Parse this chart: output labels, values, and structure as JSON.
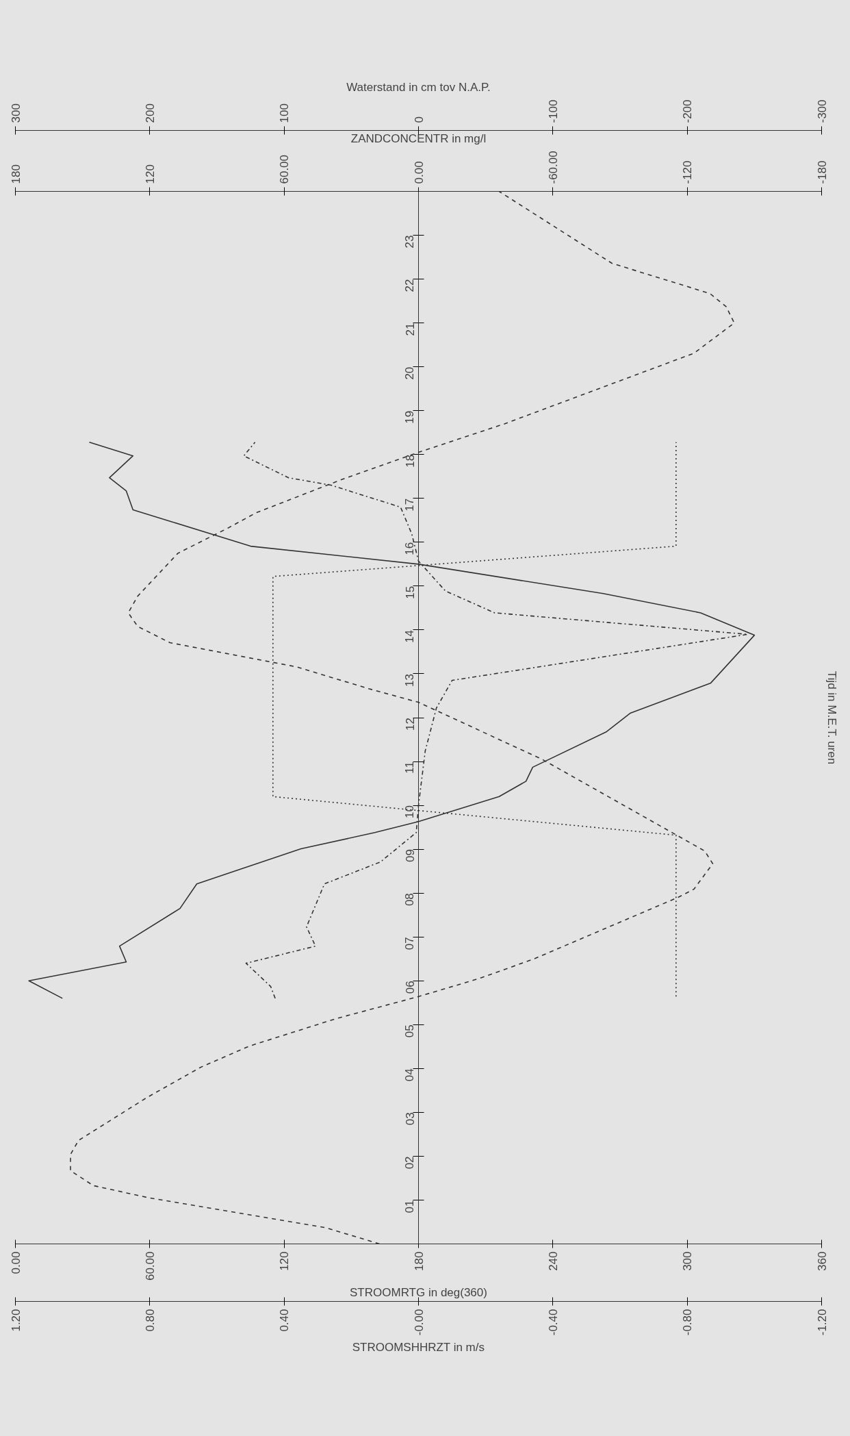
{
  "chart_data": [
    {
      "type": "line",
      "orientation": "horizontal",
      "xlabel": "STROOMSHHRZT in m/s",
      "x2label": "STROOMRTG in deg(360)",
      "ylabel": "Tijd in M.E.T. uren",
      "xlim": [
        1.2,
        -1.2
      ],
      "xticks": [
        {
          "value": 1.2,
          "label": "1.20"
        },
        {
          "value": 0.8,
          "label": "0.80"
        },
        {
          "value": 0.4,
          "label": "0.40"
        },
        {
          "value": 0,
          "label": "-0.00"
        },
        {
          "value": -0.4,
          "label": "-0.40"
        },
        {
          "value": -0.8,
          "label": "-0.80"
        },
        {
          "value": -1.2,
          "label": "-1.20"
        }
      ],
      "x2lim": [
        0,
        360
      ],
      "x2ticks": [
        {
          "value": 0,
          "label": "0.00"
        },
        {
          "value": 60,
          "label": "60.00"
        },
        120,
        180,
        240,
        300,
        360
      ],
      "ylim": [
        0,
        24
      ],
      "yticks": [
        {
          "value": 1,
          "label": "01"
        },
        {
          "value": 2,
          "label": "02"
        },
        {
          "value": 3,
          "label": "03"
        },
        {
          "value": 4,
          "label": "04"
        },
        {
          "value": 5,
          "label": "05"
        },
        {
          "value": 6,
          "label": "06"
        },
        {
          "value": 7,
          "label": "07"
        },
        {
          "value": 8,
          "label": "08"
        },
        {
          "value": 9,
          "label": "09"
        },
        {
          "value": 10,
          "label": "10"
        },
        {
          "value": 11,
          "label": "11"
        },
        {
          "value": 12,
          "label": "12"
        },
        {
          "value": 13,
          "label": "13"
        },
        {
          "value": 14,
          "label": "14"
        },
        {
          "value": 15,
          "label": "15"
        },
        {
          "value": 16,
          "label": "16"
        },
        {
          "value": 17,
          "label": "17"
        },
        {
          "value": 18,
          "label": "18"
        },
        {
          "value": 19,
          "label": "19"
        },
        {
          "value": 20,
          "label": "20"
        },
        {
          "value": 21,
          "label": "21"
        },
        {
          "value": 22,
          "label": "22"
        },
        {
          "value": 23,
          "label": "23"
        }
      ],
      "series": [
        {
          "line_style": "solid",
          "color": "#333333",
          "x": [
            5.6,
            6.0,
            6.43,
            6.79,
            7.65,
            8.21,
            9.01,
            9.38,
            9.63,
            10.2,
            10.55,
            10.87,
            11.68,
            12.1,
            12.79,
            13.88,
            14.39,
            14.83,
            15.5,
            15.91,
            16.74,
            17.17,
            17.47,
            17.97,
            18.28
          ],
          "values": [
            1.06,
            1.16,
            0.87,
            0.89,
            0.71,
            0.66,
            0.35,
            0.13,
            0.0,
            -0.24,
            -0.32,
            -0.34,
            -0.56,
            -0.63,
            -0.87,
            -1.0,
            -0.84,
            -0.55,
            0.0,
            0.5,
            0.85,
            0.87,
            0.92,
            0.85,
            0.98
          ]
        },
        {
          "axis": "x2",
          "line_style": "dotted",
          "color": "#333333",
          "x": [
            5.64,
            9.32,
            10.2,
            15.22,
            15.91,
            18.28
          ],
          "values": [
            295,
            295,
            115,
            115,
            295,
            295
          ]
        }
      ]
    },
    {
      "type": "line",
      "orientation": "horizontal",
      "tick_labels": "x",
      "xlabel": "Waterstand in cm tov N.A.P.",
      "x2label": "ZANDCONCENTR in mg/l",
      "xlim": [
        300,
        -300
      ],
      "xticks": [
        300,
        200,
        100,
        0,
        -100,
        -200,
        -300
      ],
      "x2lim": [
        180,
        -180
      ],
      "x2ticks": [
        180,
        120,
        {
          "value": 60,
          "label": "60.00"
        },
        {
          "value": 0,
          "label": "0.00"
        },
        {
          "value": -60,
          "label": "-60.00"
        },
        -120,
        -180
      ],
      "ylim": [
        0,
        24
      ],
      "series": [
        {
          "line_style": "dashed",
          "color": "#333333",
          "x": [
            0,
            0.37,
            1.06,
            1.33,
            1.67,
            2.04,
            2.36,
            3.34,
            4.03,
            4.51,
            5.14,
            5.64,
            6.06,
            6.5,
            7.9,
            8.09,
            8.67,
            8.96,
            11.05,
            12.35,
            12.66,
            13.16,
            13.71,
            14.08,
            14.39,
            14.77,
            15.75,
            16.32,
            16.67,
            17.42,
            18.05,
            18.7,
            20.31,
            21.0,
            21.37,
            21.67,
            22.36,
            24
          ],
          "values": [
            29,
            69,
            202,
            242,
            259,
            259,
            253,
            202,
            162,
            126,
            61,
            0,
            -46,
            -86,
            -193,
            -205,
            -219,
            -213,
            -92,
            0,
            37,
            91,
            185,
            209,
            216,
            209,
            179,
            142,
            121,
            58,
            0,
            -64,
            -205,
            -235,
            -229,
            -217,
            -144,
            -60
          ]
        },
        {
          "axis": "x2",
          "line_style": "dashdot",
          "color": "#333333",
          "x": [
            5.6,
            5.87,
            6.4,
            6.79,
            7.23,
            8.21,
            8.71,
            9.38,
            10.0,
            11.24,
            12.22,
            12.85,
            13.9,
            14.39,
            14.89,
            15.57,
            16.19,
            16.8,
            17.3,
            17.47,
            17.97,
            18.28
          ],
          "values": [
            64,
            66,
            77,
            46,
            50,
            42,
            17,
            1,
            0,
            -3,
            -8,
            -15,
            -147,
            -34,
            -12,
            0,
            3,
            8,
            39,
            58,
            78,
            73
          ]
        }
      ]
    }
  ]
}
